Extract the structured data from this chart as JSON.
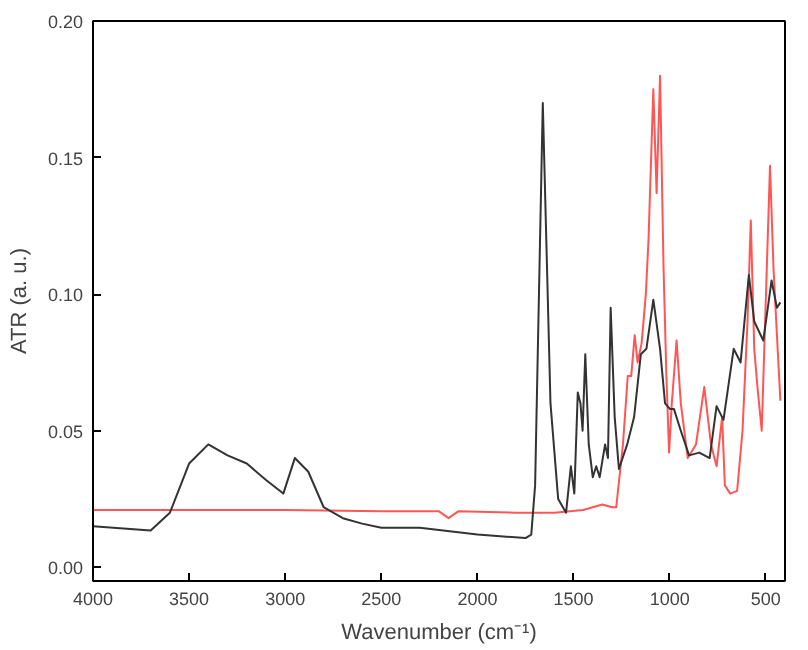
{
  "chart_data": {
    "type": "line",
    "xlabel": "Wavenumber (cm⁻¹)",
    "ylabel": "ATR (a. u.)",
    "xlim": [
      4000,
      400
    ],
    "ylim": [
      -0.005,
      0.2
    ],
    "xticks": [
      4000,
      3500,
      3000,
      2500,
      2000,
      1500,
      1000,
      500
    ],
    "yticks": [
      {
        "value": 0,
        "label": "0.00"
      },
      {
        "value": 0.05,
        "label": "0.05"
      },
      {
        "value": 0.1,
        "label": "0.10"
      },
      {
        "value": 0.15,
        "label": "0.15"
      },
      {
        "value": 0.2,
        "label": "0.20"
      }
    ],
    "grid": false,
    "line_style": "solid",
    "marker": "none",
    "series": [
      {
        "color": "#ff5555",
        "x": [
          4000,
          3500,
          3000,
          2500,
          2200,
          2150,
          2100,
          1800,
          1600,
          1450,
          1350,
          1300,
          1278,
          1243,
          1218,
          1200,
          1182,
          1167,
          1146,
          1124,
          1110,
          1085,
          1068,
          1050,
          1032,
          1017,
          1003,
          989,
          964,
          942,
          906,
          863,
          820,
          785,
          756,
          727,
          713,
          685,
          649,
          621,
          595,
          578,
          560,
          542,
          521,
          499,
          478,
          460,
          442,
          424
        ],
        "values": [
          0.021,
          0.021,
          0.021,
          0.0205,
          0.0205,
          0.018,
          0.0205,
          0.02,
          0.02,
          0.021,
          0.023,
          0.022,
          0.022,
          0.045,
          0.07,
          0.07,
          0.085,
          0.075,
          0.082,
          0.1,
          0.12,
          0.175,
          0.137,
          0.18,
          0.11,
          0.07,
          0.042,
          0.06,
          0.083,
          0.06,
          0.04,
          0.045,
          0.066,
          0.045,
          0.037,
          0.055,
          0.03,
          0.027,
          0.028,
          0.05,
          0.09,
          0.127,
          0.08,
          0.065,
          0.05,
          0.1,
          0.147,
          0.11,
          0.085,
          0.061
        ]
      },
      {
        "color": "#333333",
        "x": [
          4000,
          3700,
          3600,
          3500,
          3400,
          3300,
          3200,
          3100,
          3010,
          2950,
          2880,
          2800,
          2700,
          2600,
          2500,
          2300,
          2000,
          1750,
          1720,
          1700,
          1680,
          1660,
          1620,
          1580,
          1539,
          1514,
          1496,
          1478,
          1464,
          1453,
          1439,
          1421,
          1400,
          1382,
          1364,
          1336,
          1321,
          1307,
          1286,
          1264,
          1221,
          1185,
          1150,
          1121,
          1085,
          1050,
          1024,
          999,
          978,
          942,
          899,
          846,
          792,
          756,
          720,
          667,
          631,
          588,
          560,
          513,
          470,
          442,
          424
        ],
        "values": [
          0.015,
          0.0135,
          0.02,
          0.038,
          0.045,
          0.041,
          0.038,
          0.032,
          0.027,
          0.04,
          0.035,
          0.022,
          0.018,
          0.016,
          0.0145,
          0.0145,
          0.012,
          0.0107,
          0.012,
          0.03,
          0.1,
          0.17,
          0.06,
          0.025,
          0.02,
          0.037,
          0.027,
          0.064,
          0.06,
          0.05,
          0.078,
          0.045,
          0.033,
          0.037,
          0.033,
          0.045,
          0.04,
          0.095,
          0.055,
          0.036,
          0.045,
          0.055,
          0.078,
          0.08,
          0.098,
          0.08,
          0.06,
          0.058,
          0.058,
          0.05,
          0.041,
          0.042,
          0.04,
          0.059,
          0.054,
          0.08,
          0.075,
          0.107,
          0.09,
          0.083,
          0.105,
          0.095,
          0.097
        ]
      }
    ]
  }
}
